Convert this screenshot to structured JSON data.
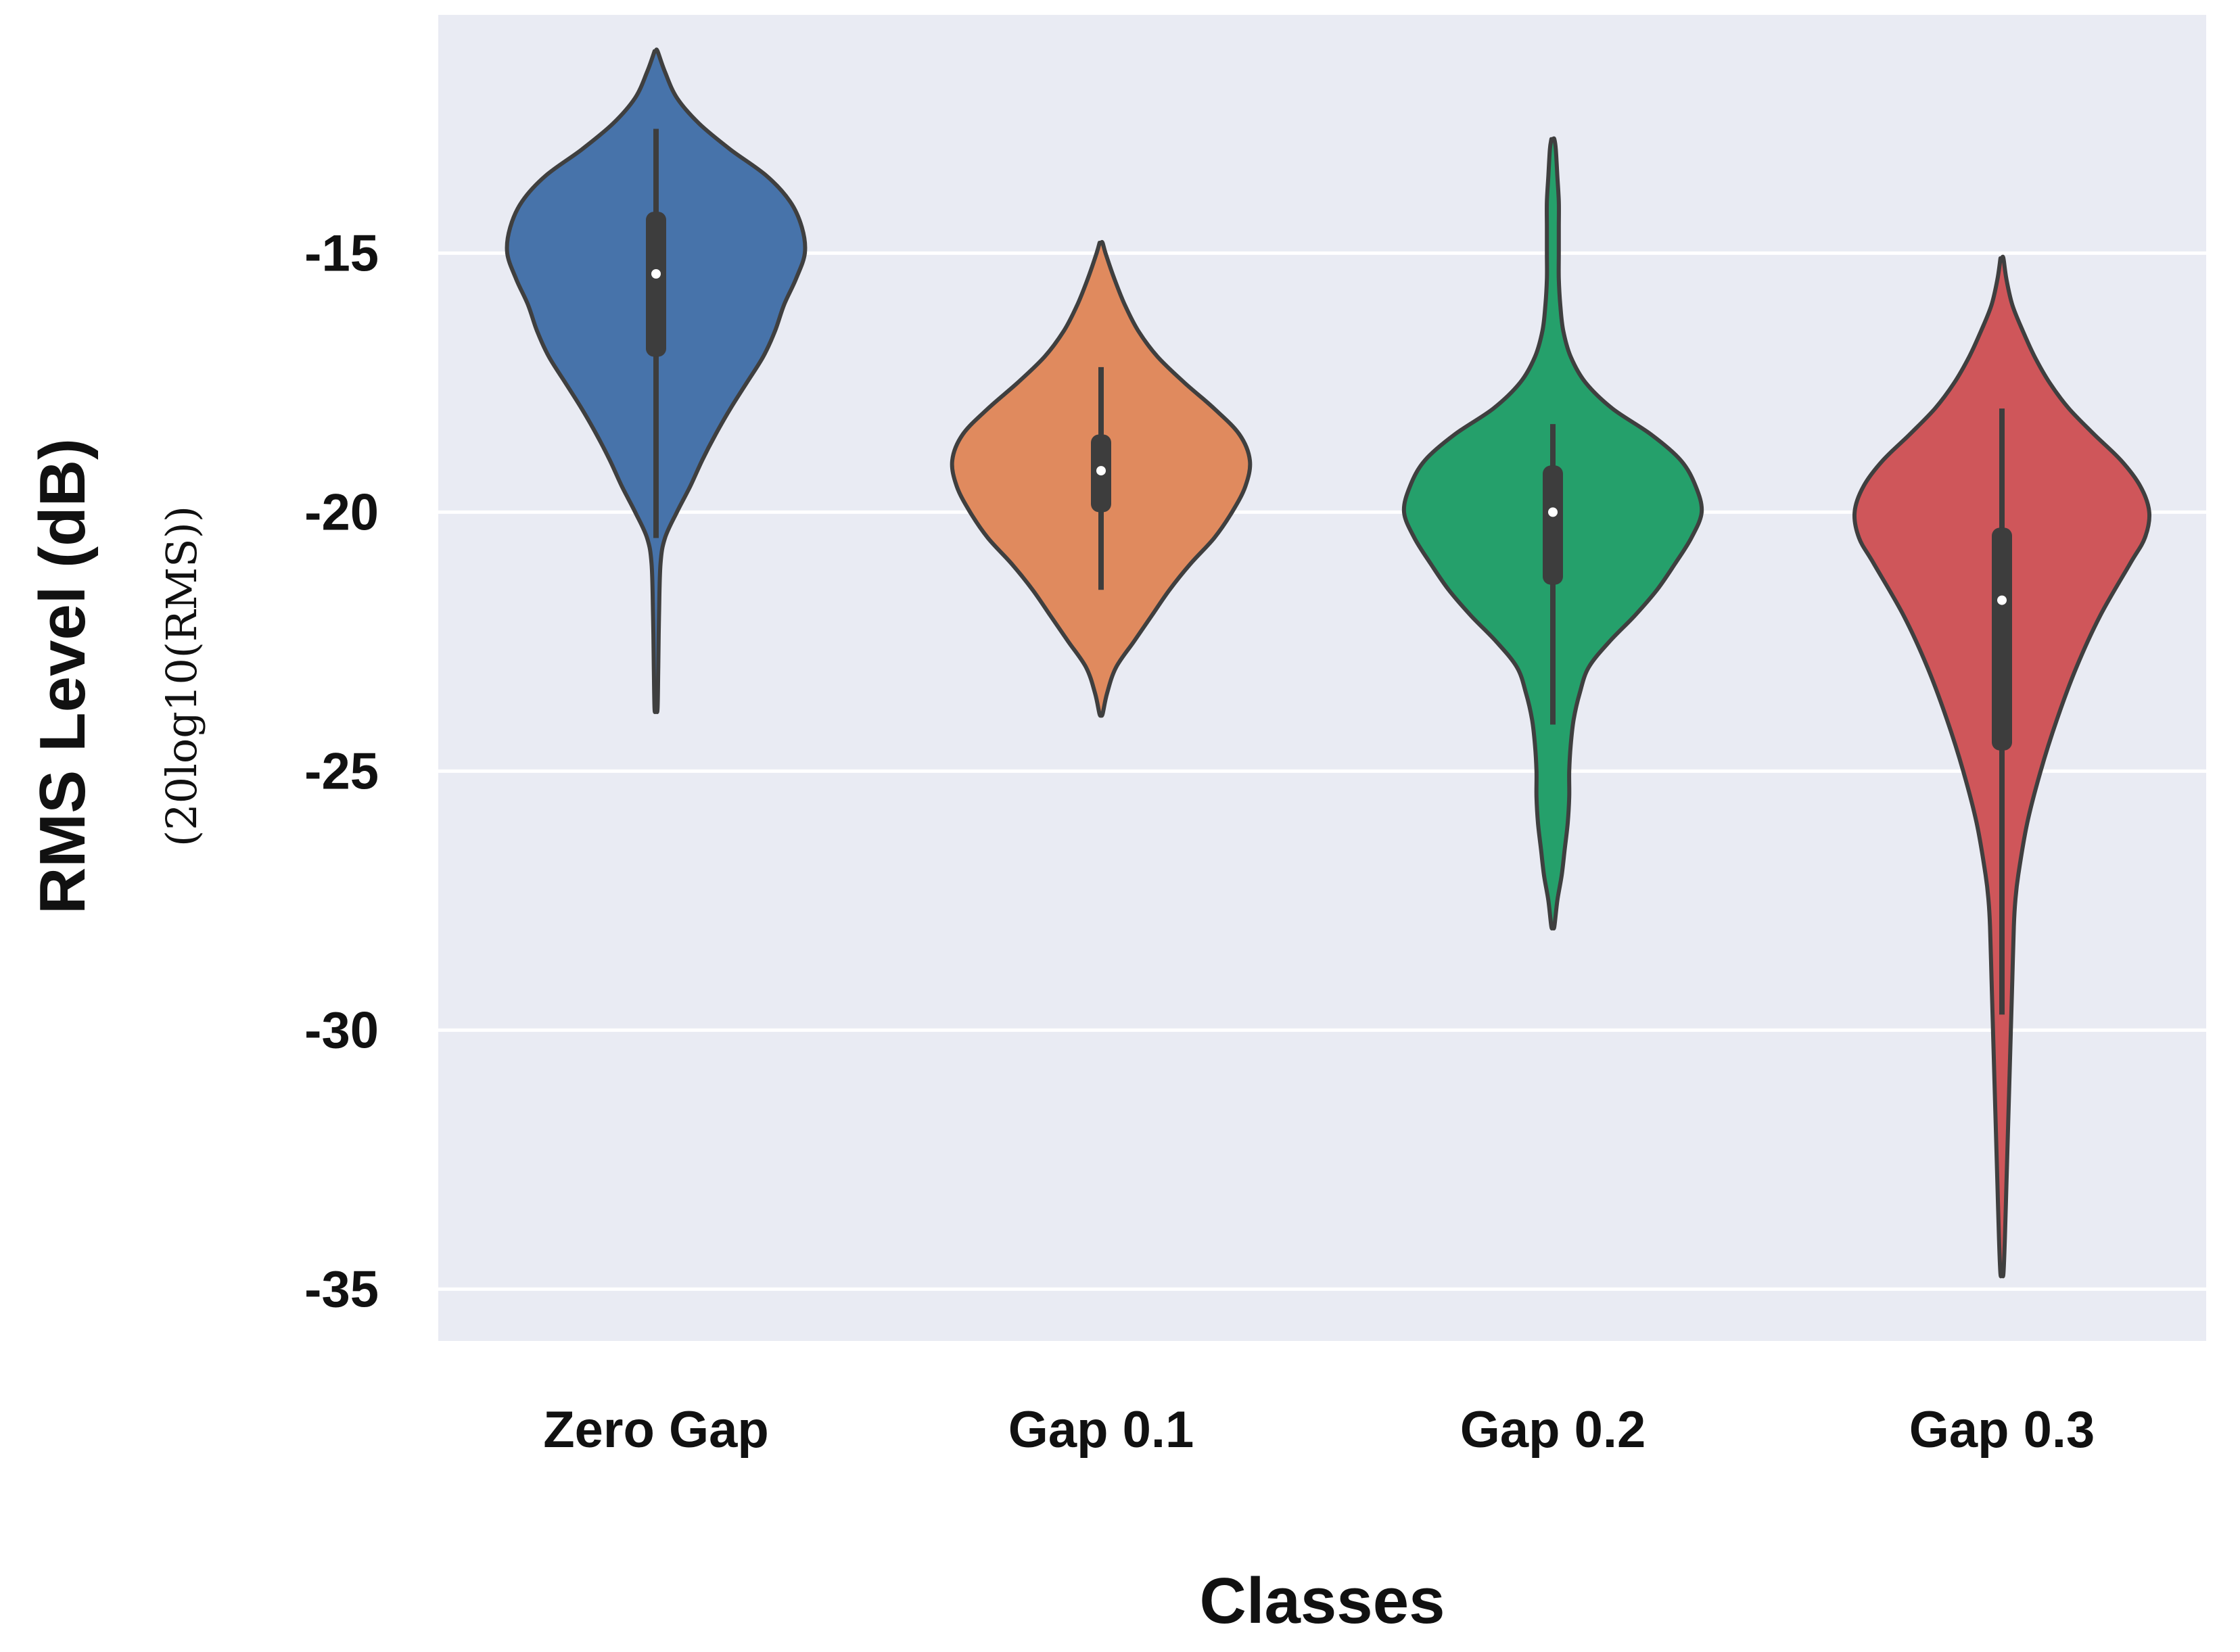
{
  "chart_data": {
    "type": "violin",
    "xlabel": "Classes",
    "ylabel": "RMS Level (dB)",
    "ylabel_sub": "(20log10(RMS))",
    "categories": [
      "Zero Gap",
      "Gap 0.1",
      "Gap 0.2",
      "Gap 0.3"
    ],
    "yticks": [
      -15,
      -20,
      -25,
      -30,
      -35
    ],
    "ytick_labels": [
      "-15",
      "-20",
      "-25",
      "-30",
      "-35"
    ],
    "ylim": [
      -36,
      -10.4
    ],
    "grid": true,
    "background": "#e9ebf3",
    "gridline_color": "#ffffff",
    "inner_box_color": "#3d3d3d",
    "violins": [
      {
        "category": "Zero Gap",
        "color": "#4773aa",
        "min": -23.8,
        "max": -11.1,
        "whisker_low": -20.5,
        "whisker_high": -12.6,
        "q1": -17.0,
        "median": -15.4,
        "q3": -14.2,
        "profile": [
          [
            -23.8,
            0.01
          ],
          [
            -23.0,
            0.015
          ],
          [
            -22.0,
            0.02
          ],
          [
            -21.0,
            0.03
          ],
          [
            -20.5,
            0.06
          ],
          [
            -20.0,
            0.14
          ],
          [
            -19.5,
            0.23
          ],
          [
            -19.0,
            0.31
          ],
          [
            -18.5,
            0.4
          ],
          [
            -18.0,
            0.5
          ],
          [
            -17.5,
            0.61
          ],
          [
            -17.0,
            0.72
          ],
          [
            -16.5,
            0.8
          ],
          [
            -16.0,
            0.86
          ],
          [
            -15.5,
            0.94
          ],
          [
            -15.0,
            1.0
          ],
          [
            -14.5,
            0.98
          ],
          [
            -14.0,
            0.9
          ],
          [
            -13.5,
            0.74
          ],
          [
            -13.0,
            0.5
          ],
          [
            -12.5,
            0.29
          ],
          [
            -12.0,
            0.14
          ],
          [
            -11.5,
            0.06
          ],
          [
            -11.1,
            0.01
          ]
        ]
      },
      {
        "category": "Gap 0.1",
        "color": "#e08a5e",
        "min": -23.9,
        "max": -14.8,
        "whisker_low": -21.5,
        "whisker_high": -17.2,
        "q1": -20.0,
        "median": -19.2,
        "q3": -18.5,
        "profile": [
          [
            -23.9,
            0.01
          ],
          [
            -23.5,
            0.04
          ],
          [
            -23.0,
            0.1
          ],
          [
            -22.5,
            0.22
          ],
          [
            -22.0,
            0.34
          ],
          [
            -21.5,
            0.46
          ],
          [
            -21.0,
            0.6
          ],
          [
            -20.5,
            0.76
          ],
          [
            -20.0,
            0.88
          ],
          [
            -19.5,
            0.97
          ],
          [
            -19.0,
            1.0
          ],
          [
            -18.5,
            0.93
          ],
          [
            -18.0,
            0.76
          ],
          [
            -17.5,
            0.56
          ],
          [
            -17.0,
            0.38
          ],
          [
            -16.5,
            0.25
          ],
          [
            -16.0,
            0.16
          ],
          [
            -15.5,
            0.09
          ],
          [
            -15.0,
            0.03
          ],
          [
            -14.8,
            0.01
          ]
        ]
      },
      {
        "category": "Gap 0.2",
        "color": "#25a06b",
        "min": -28.0,
        "max": -12.8,
        "whisker_low": -24.1,
        "whisker_high": -18.3,
        "q1": -21.4,
        "median": -20.0,
        "q3": -19.1,
        "profile": [
          [
            -28.0,
            0.01
          ],
          [
            -27.5,
            0.03
          ],
          [
            -27.0,
            0.06
          ],
          [
            -26.5,
            0.08
          ],
          [
            -26.0,
            0.1
          ],
          [
            -25.5,
            0.11
          ],
          [
            -25.0,
            0.11
          ],
          [
            -24.5,
            0.12
          ],
          [
            -24.0,
            0.14
          ],
          [
            -23.5,
            0.18
          ],
          [
            -23.0,
            0.24
          ],
          [
            -22.5,
            0.38
          ],
          [
            -22.0,
            0.55
          ],
          [
            -21.5,
            0.7
          ],
          [
            -21.0,
            0.82
          ],
          [
            -20.5,
            0.93
          ],
          [
            -20.0,
            1.0
          ],
          [
            -19.5,
            0.96
          ],
          [
            -19.0,
            0.86
          ],
          [
            -18.5,
            0.66
          ],
          [
            -18.0,
            0.4
          ],
          [
            -17.5,
            0.22
          ],
          [
            -17.0,
            0.12
          ],
          [
            -16.5,
            0.07
          ],
          [
            -16.0,
            0.05
          ],
          [
            -15.5,
            0.04
          ],
          [
            -15.0,
            0.04
          ],
          [
            -14.5,
            0.04
          ],
          [
            -14.0,
            0.04
          ],
          [
            -13.5,
            0.03
          ],
          [
            -13.0,
            0.02
          ],
          [
            -12.8,
            0.01
          ]
        ]
      },
      {
        "category": "Gap 0.3",
        "color": "#cf565a",
        "min": -34.7,
        "max": -15.1,
        "whisker_low": -29.7,
        "whisker_high": -18.0,
        "q1": -24.6,
        "median": -21.7,
        "q3": -20.3,
        "profile": [
          [
            -34.7,
            0.01
          ],
          [
            -34.0,
            0.02
          ],
          [
            -33.0,
            0.03
          ],
          [
            -32.0,
            0.04
          ],
          [
            -31.0,
            0.05
          ],
          [
            -30.0,
            0.06
          ],
          [
            -29.0,
            0.07
          ],
          [
            -28.0,
            0.08
          ],
          [
            -27.5,
            0.09
          ],
          [
            -27.0,
            0.11
          ],
          [
            -26.0,
            0.17
          ],
          [
            -25.0,
            0.26
          ],
          [
            -24.0,
            0.37
          ],
          [
            -23.0,
            0.5
          ],
          [
            -22.0,
            0.66
          ],
          [
            -21.0,
            0.86
          ],
          [
            -20.5,
            0.96
          ],
          [
            -20.0,
            0.99
          ],
          [
            -19.5,
            0.93
          ],
          [
            -19.0,
            0.8
          ],
          [
            -18.5,
            0.62
          ],
          [
            -18.0,
            0.45
          ],
          [
            -17.5,
            0.32
          ],
          [
            -17.0,
            0.22
          ],
          [
            -16.5,
            0.14
          ],
          [
            -16.0,
            0.07
          ],
          [
            -15.5,
            0.03
          ],
          [
            -15.1,
            0.01
          ]
        ]
      }
    ]
  }
}
